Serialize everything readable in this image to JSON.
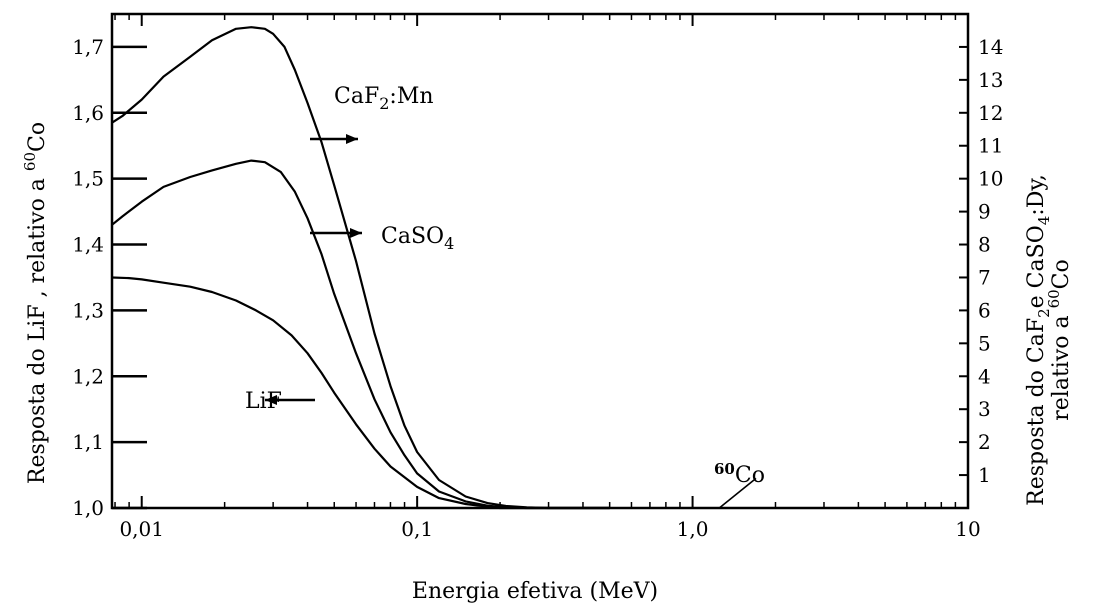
{
  "chart_data": {
    "type": "line",
    "title": "",
    "xlabel": "Energia efetiva (MeV)",
    "ylabel_left": [
      "Resposta do LiF , relativo a ",
      "60",
      "Co"
    ],
    "ylabel_right": {
      "line1": [
        "Resposta do CaF",
        "2",
        "e CaSO",
        "4",
        ":Dy,"
      ],
      "line2": [
        "relativo a ",
        "60",
        "Co"
      ]
    },
    "x_scale": "log",
    "xlim": [
      0.0078,
      10
    ],
    "ylim_left": [
      1.0,
      1.75
    ],
    "ylim_right": [
      0,
      15
    ],
    "x_ticks": [
      {
        "value": 0.01,
        "label": "0,01"
      },
      {
        "value": 0.1,
        "label": "0,1"
      },
      {
        "value": 1.0,
        "label": "1,0"
      },
      {
        "value": 10,
        "label": "10"
      }
    ],
    "y_left_ticks": [
      {
        "value": 1.0,
        "label": "1,0"
      },
      {
        "value": 1.1,
        "label": "1,1"
      },
      {
        "value": 1.2,
        "label": "1,2"
      },
      {
        "value": 1.3,
        "label": "1,3"
      },
      {
        "value": 1.4,
        "label": "1,4"
      },
      {
        "value": 1.5,
        "label": "1,5"
      },
      {
        "value": 1.6,
        "label": "1,6"
      },
      {
        "value": 1.7,
        "label": "1,7"
      }
    ],
    "y_right_ticks": [
      {
        "value": 1,
        "label": "1"
      },
      {
        "value": 2,
        "label": "2"
      },
      {
        "value": 3,
        "label": "3"
      },
      {
        "value": 4,
        "label": "4"
      },
      {
        "value": 5,
        "label": "5"
      },
      {
        "value": 6,
        "label": "6"
      },
      {
        "value": 7,
        "label": "7"
      },
      {
        "value": 8,
        "label": "8"
      },
      {
        "value": 9,
        "label": "9"
      },
      {
        "value": 10,
        "label": "10"
      },
      {
        "value": 11,
        "label": "11"
      },
      {
        "value": 12,
        "label": "12"
      },
      {
        "value": 13,
        "label": "13"
      },
      {
        "value": 14,
        "label": "14"
      }
    ],
    "series": [
      {
        "name": "CaF2:Mn",
        "label_parts": [
          "CaF",
          "2",
          ":Mn"
        ],
        "axis": "right",
        "arrow": "right",
        "x": [
          0.0078,
          0.0085,
          0.01,
          0.012,
          0.015,
          0.018,
          0.022,
          0.025,
          0.028,
          0.03,
          0.033,
          0.036,
          0.04,
          0.045,
          0.05,
          0.06,
          0.07,
          0.08,
          0.09,
          0.1,
          0.12,
          0.15,
          0.18,
          0.21,
          0.25,
          0.3,
          0.5
        ],
        "y": [
          11.7,
          11.9,
          12.4,
          13.1,
          13.7,
          14.2,
          14.55,
          14.6,
          14.55,
          14.4,
          14.0,
          13.3,
          12.3,
          11.1,
          9.8,
          7.5,
          5.3,
          3.7,
          2.5,
          1.7,
          0.85,
          0.35,
          0.15,
          0.06,
          0.02,
          0.0,
          0.0
        ]
      },
      {
        "name": "CaSO4",
        "label_parts": [
          "CaSO",
          "4",
          ""
        ],
        "axis": "right",
        "arrow": "right",
        "x": [
          0.0078,
          0.0085,
          0.01,
          0.012,
          0.015,
          0.018,
          0.022,
          0.025,
          0.028,
          0.032,
          0.036,
          0.04,
          0.045,
          0.05,
          0.06,
          0.07,
          0.08,
          0.09,
          0.1,
          0.12,
          0.15,
          0.18,
          0.21,
          0.25,
          0.3,
          0.5
        ],
        "y": [
          8.6,
          8.85,
          9.3,
          9.75,
          10.05,
          10.25,
          10.45,
          10.55,
          10.5,
          10.2,
          9.6,
          8.8,
          7.7,
          6.5,
          4.7,
          3.3,
          2.3,
          1.6,
          1.05,
          0.5,
          0.2,
          0.07,
          0.02,
          0.0,
          0.0,
          0.0
        ]
      },
      {
        "name": "LiF",
        "label_parts": [
          "LiF",
          "",
          ""
        ],
        "axis": "left",
        "arrow": "left",
        "x": [
          0.0078,
          0.009,
          0.01,
          0.012,
          0.015,
          0.018,
          0.022,
          0.026,
          0.03,
          0.035,
          0.04,
          0.045,
          0.05,
          0.06,
          0.07,
          0.08,
          0.1,
          0.12,
          0.15,
          0.18,
          0.2,
          0.25,
          0.3,
          0.5
        ],
        "y": [
          1.35,
          1.349,
          1.347,
          1.342,
          1.336,
          1.328,
          1.315,
          1.3,
          1.285,
          1.262,
          1.235,
          1.205,
          1.175,
          1.127,
          1.09,
          1.063,
          1.032,
          1.015,
          1.006,
          1.002,
          1.0,
          1.0,
          1.0,
          1.0
        ]
      }
    ],
    "reference": {
      "label_sup": "60",
      "label_text": "Co",
      "x": [
        1.25,
        1.7
      ],
      "y_right": [
        0.0,
        0.9
      ]
    },
    "grid": false
  }
}
